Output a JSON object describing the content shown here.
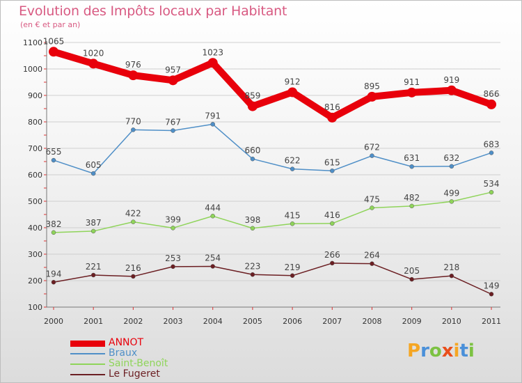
{
  "header": {
    "title": "Evolution des Impôts locaux par Habitant",
    "subtitle": "(en € et par an)"
  },
  "logo": {
    "text": "Proxiti",
    "letters": [
      "P",
      "r",
      "o",
      "x",
      "i",
      "t",
      "i"
    ],
    "colors": [
      "#f5a623",
      "#4a90d9",
      "#7cc242",
      "#e94e1b",
      "#f5a623",
      "#4a90d9",
      "#7cc242"
    ]
  },
  "chart_data": {
    "type": "line",
    "title": "Evolution des Impôts locaux par Habitant",
    "subtitle": "(en € et par an)",
    "x": [
      "2000",
      "2001",
      "2002",
      "2003",
      "2004",
      "2005",
      "2006",
      "2007",
      "2008",
      "2009",
      "2010",
      "2011"
    ],
    "ylim": [
      100,
      1100
    ],
    "yticks": [
      100,
      200,
      300,
      400,
      500,
      600,
      700,
      800,
      900,
      1000,
      1100
    ],
    "grid": true,
    "legend": "bottom-left",
    "series": [
      {
        "name": "ANNOT",
        "color": "#e8000b",
        "values": [
          1065,
          1020,
          976,
          957,
          1023,
          859,
          912,
          816,
          895,
          911,
          919,
          866
        ]
      },
      {
        "name": "Braux",
        "color": "#4f8fc7",
        "values": [
          655,
          605,
          770,
          767,
          791,
          660,
          622,
          615,
          672,
          631,
          632,
          683
        ]
      },
      {
        "name": "Saint-Benoît",
        "color": "#8fd45a",
        "values": [
          382,
          387,
          422,
          399,
          444,
          398,
          415,
          416,
          475,
          482,
          499,
          534
        ]
      },
      {
        "name": "Le Fugeret",
        "color": "#6b1e22",
        "values": [
          194,
          221,
          216,
          253,
          254,
          223,
          219,
          266,
          264,
          205,
          218,
          149
        ]
      }
    ]
  }
}
